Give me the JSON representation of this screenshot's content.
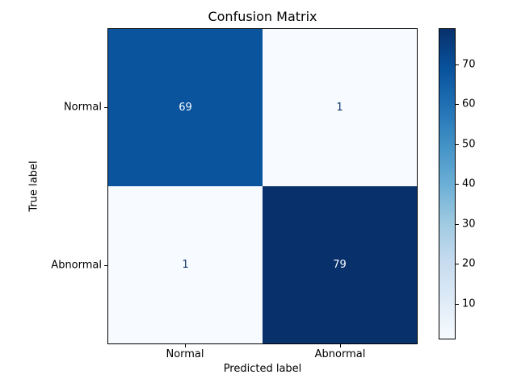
{
  "chart_data": {
    "type": "heatmap",
    "title": "Confusion Matrix",
    "xlabel": "Predicted label",
    "ylabel": "True label",
    "x_categories": [
      "Normal",
      "Abnormal"
    ],
    "y_categories": [
      "Normal",
      "Abnormal"
    ],
    "matrix": [
      [
        69,
        1
      ],
      [
        1,
        79
      ]
    ],
    "colormap": "Blues",
    "value_range": [
      1,
      79
    ],
    "colorbar_ticks": [
      10,
      20,
      30,
      40,
      50,
      60,
      70
    ],
    "legend_position": "right-colorbar",
    "grid": false,
    "colors": {
      "cell_true_normal_pred_normal": "#0a549e",
      "cell_true_normal_pred_abnormal": "#f7fbff",
      "cell_true_abnormal_pred_normal": "#f7fbff",
      "cell_true_abnormal_pred_abnormal": "#08306b",
      "text_on_dark": "#f7fbff",
      "text_on_light": "#08306b",
      "axes_edge": "#000000",
      "background": "#ffffff"
    }
  }
}
